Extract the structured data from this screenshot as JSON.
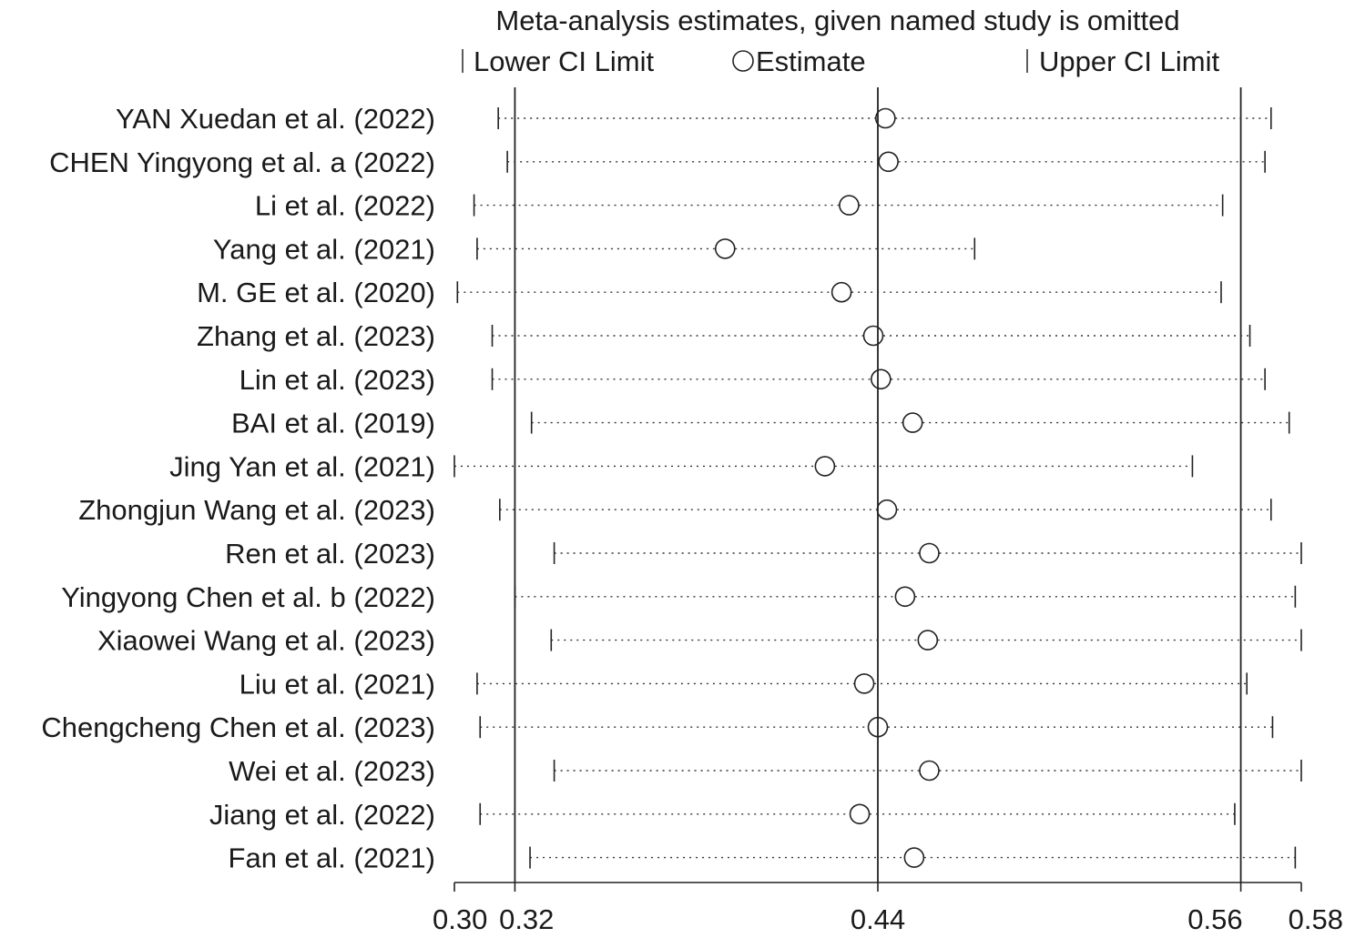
{
  "chart_data": {
    "type": "scatter",
    "title": "Meta-analysis estimates, given named study is omitted",
    "legend": {
      "lower": "Lower CI Limit",
      "estimate": "Estimate",
      "upper": "Upper CI Limit",
      "placement": "top"
    },
    "xlim": [
      0.3,
      0.58
    ],
    "reference_lines": [
      0.32,
      0.44,
      0.56
    ],
    "ticks": [
      {
        "value": 0.3,
        "label": "0.30"
      },
      {
        "value": 0.32,
        "label": "0.32"
      },
      {
        "value": 0.44,
        "label": "0.44"
      },
      {
        "value": 0.56,
        "label": "0.56"
      },
      {
        "value": 0.58,
        "label": "0.58"
      }
    ],
    "grid": false,
    "studies": [
      {
        "label": "YAN Xuedan et al. (2022)",
        "lower": 0.3145,
        "estimate": 0.4425,
        "upper": 0.57
      },
      {
        "label": "CHEN Yingyong et al. a (2022)",
        "lower": 0.3175,
        "estimate": 0.4435,
        "upper": 0.568
      },
      {
        "label": "Li et al.  (2022)",
        "lower": 0.3065,
        "estimate": 0.4305,
        "upper": 0.554
      },
      {
        "label": "Yang et al.  (2021)",
        "lower": 0.3075,
        "estimate": 0.3895,
        "upper": 0.472
      },
      {
        "label": "M. GE et al.  (2020)",
        "lower": 0.301,
        "estimate": 0.428,
        "upper": 0.5535
      },
      {
        "label": "Zhang et al.  (2023)",
        "lower": 0.3125,
        "estimate": 0.4385,
        "upper": 0.563
      },
      {
        "label": "Lin et al. (2023)",
        "lower": 0.3125,
        "estimate": 0.441,
        "upper": 0.568
      },
      {
        "label": "BAI et al. (2019)",
        "lower": 0.3255,
        "estimate": 0.4515,
        "upper": 0.576
      },
      {
        "label": "Jing Yan et al. (2021)",
        "lower": 0.3,
        "estimate": 0.4225,
        "upper": 0.544
      },
      {
        "label": "Zhongjun Wang et al. (2023)",
        "lower": 0.315,
        "estimate": 0.443,
        "upper": 0.57
      },
      {
        "label": "Ren et al.  (2023)",
        "lower": 0.333,
        "estimate": 0.457,
        "upper": 0.58
      },
      {
        "label": "Yingyong Chen et al. b (2022)",
        "lower": 0.32,
        "estimate": 0.449,
        "upper": 0.578
      },
      {
        "label": "Xiaowei Wang  et al.  (2023)",
        "lower": 0.332,
        "estimate": 0.4565,
        "upper": 0.58
      },
      {
        "label": "Liu et al. (2021)",
        "lower": 0.3075,
        "estimate": 0.4355,
        "upper": 0.562
      },
      {
        "label": "Chengcheng Chen et al. (2023)",
        "lower": 0.3085,
        "estimate": 0.44,
        "upper": 0.5705
      },
      {
        "label": "Wei et al. (2023)",
        "lower": 0.333,
        "estimate": 0.457,
        "upper": 0.58
      },
      {
        "label": "Jiang et al. (2022)",
        "lower": 0.3085,
        "estimate": 0.434,
        "upper": 0.558
      },
      {
        "label": "Fan et al. (2021)",
        "lower": 0.325,
        "estimate": 0.452,
        "upper": 0.578
      }
    ]
  }
}
